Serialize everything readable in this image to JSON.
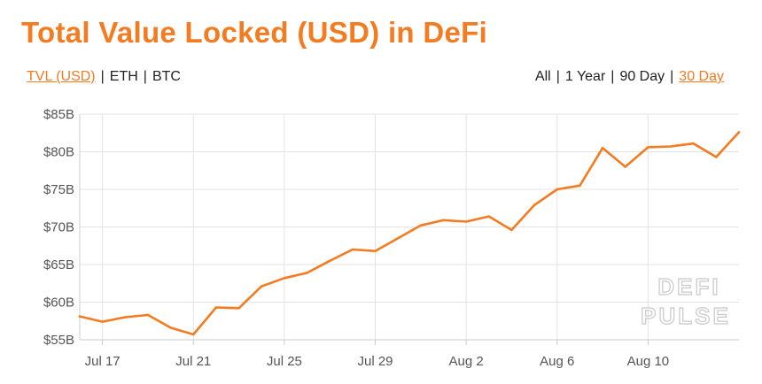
{
  "title": "Total Value Locked (USD) in DeFi",
  "currency_toggle": [
    {
      "label": "TVL (USD)",
      "active": true
    },
    {
      "label": "ETH",
      "active": false
    },
    {
      "label": "BTC",
      "active": false
    }
  ],
  "range_toggle": [
    {
      "label": "All",
      "active": false
    },
    {
      "label": "1 Year",
      "active": false
    },
    {
      "label": "90 Day",
      "active": false
    },
    {
      "label": "30 Day",
      "active": true
    }
  ],
  "watermark": [
    "DEFI",
    "PULSE"
  ],
  "colors": {
    "accent": "#f47b20",
    "line": "#f47b20",
    "grid": "#e3e3e3",
    "text": "#222222"
  },
  "chart_data": {
    "type": "line",
    "title": "Total Value Locked (USD) in DeFi",
    "xlabel": "",
    "ylabel": "",
    "x_tick_labels": [
      "Jul 17",
      "Jul 21",
      "Jul 25",
      "Jul 29",
      "Aug 2",
      "Aug 6",
      "Aug 10"
    ],
    "x_tick_dates": [
      "2020-07-17",
      "2020-07-21",
      "2020-07-25",
      "2020-07-29",
      "2020-08-02",
      "2020-08-06",
      "2020-08-10"
    ],
    "y_tick_labels": [
      "$55B",
      "$60B",
      "$65B",
      "$70B",
      "$75B",
      "$80B",
      "$85B"
    ],
    "ylim": [
      55,
      85
    ],
    "x_range": [
      "2020-07-16",
      "2020-08-14"
    ],
    "grid": true,
    "series": [
      {
        "x": [
          "2020-07-16",
          "2020-07-17",
          "2020-07-18",
          "2020-07-19",
          "2020-07-20",
          "2020-07-21",
          "2020-07-22",
          "2020-07-23",
          "2020-07-24",
          "2020-07-25",
          "2020-07-26",
          "2020-07-27",
          "2020-07-28",
          "2020-07-29",
          "2020-07-30",
          "2020-07-31",
          "2020-08-01",
          "2020-08-02",
          "2020-08-03",
          "2020-08-04",
          "2020-08-05",
          "2020-08-06",
          "2020-08-07",
          "2020-08-08",
          "2020-08-09",
          "2020-08-10",
          "2020-08-11",
          "2020-08-12",
          "2020-08-13",
          "2020-08-14"
        ],
        "values": [
          58.1,
          57.4,
          58.0,
          58.3,
          56.6,
          55.7,
          59.3,
          59.2,
          62.1,
          63.2,
          63.9,
          65.5,
          67.0,
          66.8,
          68.5,
          70.2,
          70.9,
          70.7,
          71.4,
          69.6,
          72.9,
          75.0,
          75.5,
          80.5,
          78.0,
          80.6,
          80.7,
          81.1,
          79.3,
          82.6
        ]
      }
    ]
  }
}
